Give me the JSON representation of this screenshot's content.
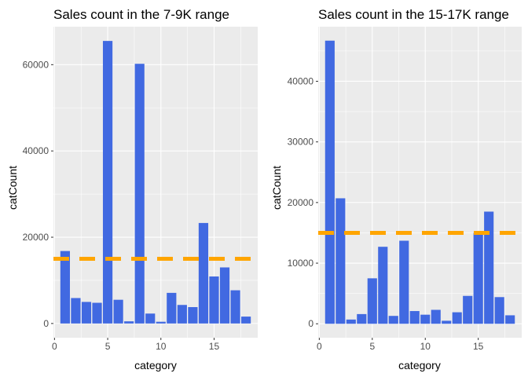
{
  "chart_data": [
    {
      "type": "bar",
      "title": "Sales count in the 7-9K range",
      "xlabel": "category",
      "ylabel": "catCount",
      "x": [
        1,
        2,
        3,
        4,
        5,
        6,
        7,
        8,
        9,
        10,
        11,
        12,
        13,
        14,
        15,
        16,
        17,
        18
      ],
      "values": [
        16800,
        5900,
        5000,
        4800,
        65500,
        5500,
        500,
        60200,
        2300,
        400,
        7100,
        4300,
        3800,
        23300,
        10900,
        13000,
        7700,
        1600
      ],
      "hline": 15000,
      "xlim": [
        -0.1,
        19.1
      ],
      "ylim": [
        -3300,
        68800
      ],
      "xticks": [
        0,
        5,
        10,
        15
      ],
      "xtick_labels": [
        "0",
        "5",
        "10",
        "15"
      ],
      "yticks": [
        0,
        20000,
        40000,
        60000
      ],
      "ytick_labels": [
        "0",
        "20000",
        "40000",
        "60000"
      ],
      "bar_color": "#4169e1",
      "hline_color": "#ffa500",
      "grid": true
    },
    {
      "type": "bar",
      "title": "Sales count in the 15-17K range",
      "xlabel": "category",
      "ylabel": "catCount",
      "x": [
        1,
        2,
        3,
        4,
        5,
        6,
        7,
        8,
        9,
        10,
        11,
        12,
        13,
        14,
        15,
        16,
        17,
        18
      ],
      "values": [
        46700,
        20700,
        700,
        1600,
        7500,
        12700,
        1300,
        13700,
        2100,
        1500,
        2300,
        500,
        1900,
        4600,
        15000,
        18500,
        4400,
        1400
      ],
      "hline": 15000,
      "xlim": [
        -0.1,
        19.1
      ],
      "ylim": [
        -2300,
        49000
      ],
      "xticks": [
        0,
        5,
        10,
        15
      ],
      "xtick_labels": [
        "0",
        "5",
        "10",
        "15"
      ],
      "yticks": [
        0,
        10000,
        20000,
        30000,
        40000
      ],
      "ytick_labels": [
        "0",
        "10000",
        "20000",
        "30000",
        "40000"
      ],
      "bar_color": "#4169e1",
      "hline_color": "#ffa500",
      "grid": true
    }
  ]
}
